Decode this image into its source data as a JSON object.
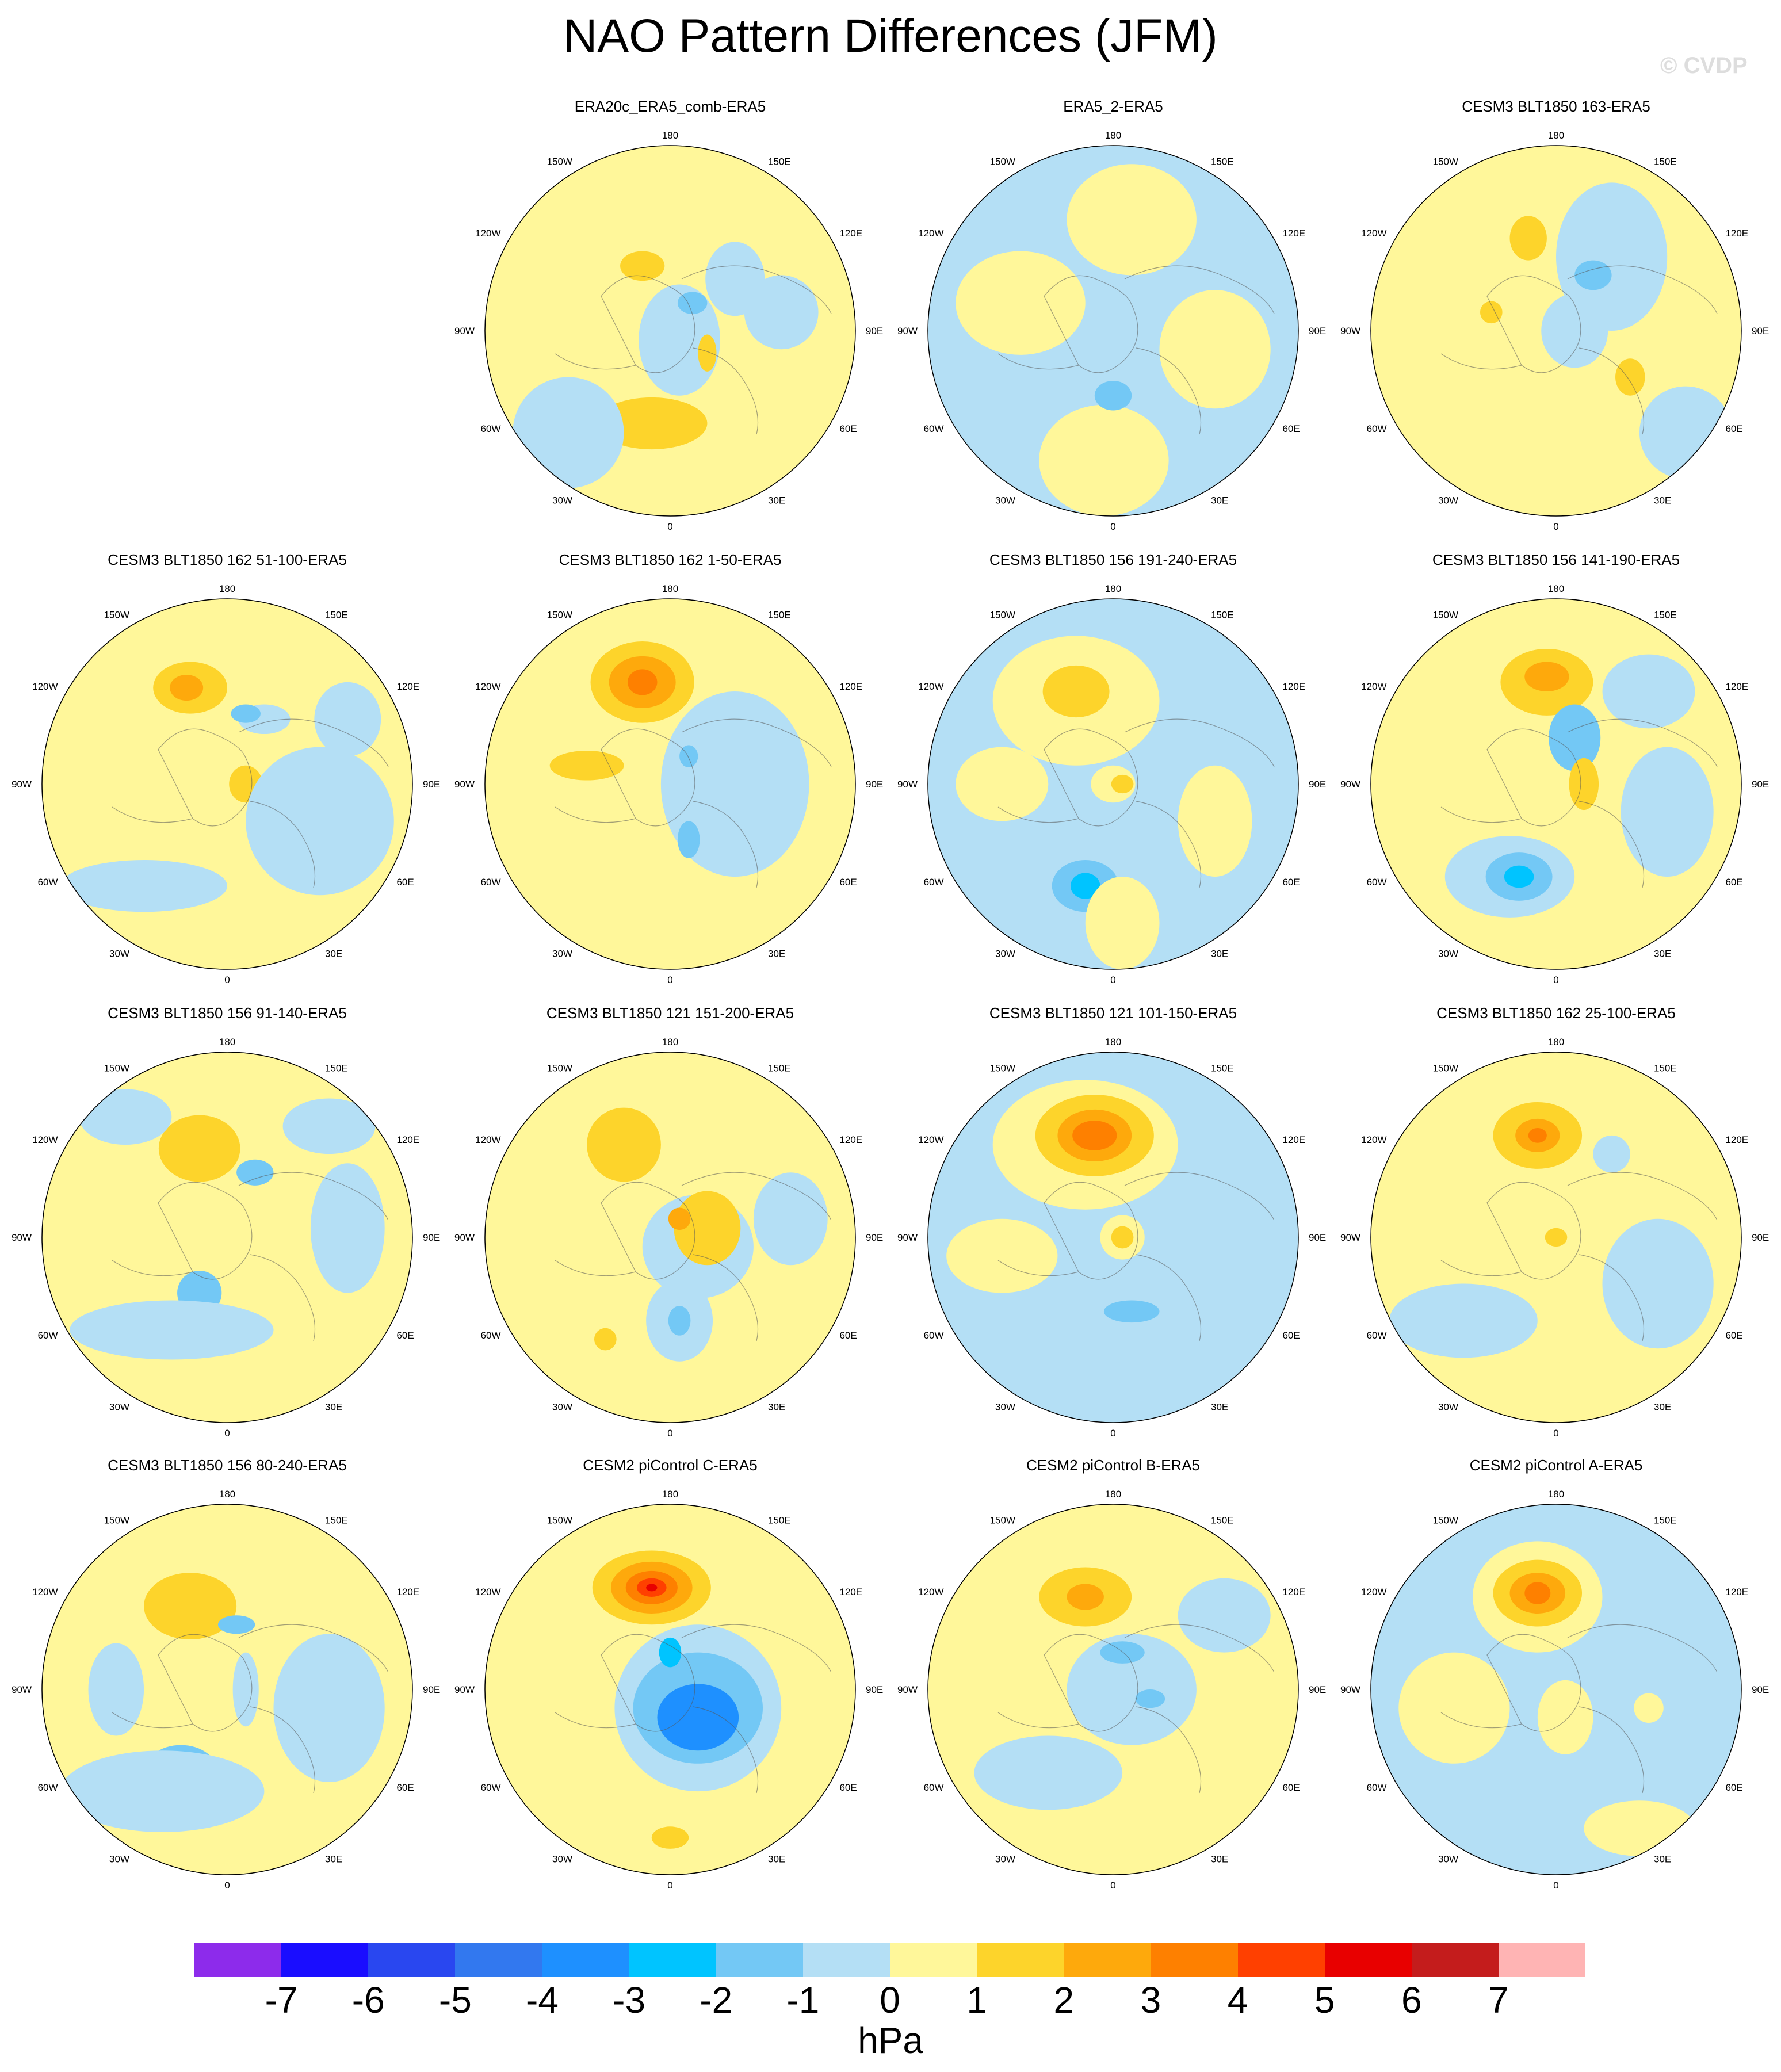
{
  "title": "NAO Pattern Differences (JFM)",
  "watermark": "© CVDP",
  "longitude_labels": [
    "180",
    "150E",
    "120E",
    "90E",
    "60E",
    "30E",
    "0",
    "30W",
    "60W",
    "90W",
    "120W",
    "150W"
  ],
  "colorbar": {
    "colors": [
      "#8d2beb",
      "#1a0dff",
      "#2947f0",
      "#3278ef",
      "#1e90ff",
      "#00c4ff",
      "#73c8f5",
      "#b4dff5",
      "#fff79a",
      "#fdd42b",
      "#fea90c",
      "#fe8000",
      "#ff4000",
      "#e80000",
      "#c41c1c",
      "#ffb4b4"
    ],
    "ticks": [
      "-7",
      "-6",
      "-5",
      "-4",
      "-3",
      "-2",
      "-1",
      "0",
      "1",
      "2",
      "3",
      "4",
      "5",
      "6",
      "7"
    ],
    "units": "hPa"
  },
  "panels": [
    {
      "title": "ERA20c_ERA5_comb-ERA5",
      "base": "#fff79a",
      "blobs": [
        [
          0.35,
          0.28,
          0.16,
          0.2,
          "#b4dff5"
        ],
        [
          -0.15,
          0.35,
          0.12,
          0.08,
          "#fdd42b"
        ],
        [
          0.05,
          -0.05,
          0.22,
          0.3,
          "#b4dff5"
        ],
        [
          0.12,
          0.15,
          0.08,
          0.06,
          "#73c8f5"
        ],
        [
          -0.1,
          -0.5,
          0.3,
          0.14,
          "#fdd42b"
        ],
        [
          0.55,
          -0.25,
          0.18,
          0.14,
          "#fff79a"
        ],
        [
          0.6,
          0.1,
          0.2,
          0.2,
          "#b4dff5"
        ],
        [
          0.2,
          -0.12,
          0.05,
          0.1,
          "#fdd42b"
        ],
        [
          -0.55,
          -0.55,
          0.3,
          0.3,
          "#b4dff5"
        ]
      ]
    },
    {
      "title": "ERA5_2-ERA5",
      "base": "#b4dff5",
      "blobs": [
        [
          0.1,
          0.6,
          0.35,
          0.3,
          "#fff79a"
        ],
        [
          -0.5,
          0.15,
          0.35,
          0.28,
          "#fff79a"
        ],
        [
          0.55,
          -0.1,
          0.3,
          0.32,
          "#fff79a"
        ],
        [
          -0.05,
          -0.7,
          0.35,
          0.3,
          "#fff79a"
        ],
        [
          0.0,
          -0.35,
          0.1,
          0.08,
          "#73c8f5"
        ],
        [
          -0.3,
          0.05,
          0.08,
          0.06,
          "#fff79a"
        ]
      ]
    },
    {
      "title": "CESM3 BLT1850 163-ERA5",
      "base": "#fff79a",
      "blobs": [
        [
          0.3,
          0.4,
          0.3,
          0.4,
          "#b4dff5"
        ],
        [
          -0.15,
          0.5,
          0.1,
          0.12,
          "#fdd42b"
        ],
        [
          0.2,
          0.3,
          0.1,
          0.08,
          "#73c8f5"
        ],
        [
          0.4,
          -0.25,
          0.08,
          0.1,
          "#fdd42b"
        ],
        [
          0.1,
          0.0,
          0.18,
          0.2,
          "#b4dff5"
        ],
        [
          -0.35,
          0.1,
          0.06,
          0.06,
          "#fdd42b"
        ],
        [
          0.7,
          -0.55,
          0.25,
          0.25,
          "#b4dff5"
        ]
      ]
    },
    {
      "title": "CESM3 BLT1850 162 51-100-ERA5",
      "base": "#fff79a",
      "blobs": [
        [
          -0.2,
          0.52,
          0.2,
          0.14,
          "#fdd42b"
        ],
        [
          -0.22,
          0.52,
          0.09,
          0.07,
          "#fea90c"
        ],
        [
          0.2,
          0.35,
          0.14,
          0.08,
          "#b4dff5"
        ],
        [
          0.1,
          0.38,
          0.08,
          0.05,
          "#73c8f5"
        ],
        [
          0.1,
          0.0,
          0.09,
          0.1,
          "#fdd42b"
        ],
        [
          0.5,
          -0.2,
          0.4,
          0.4,
          "#b4dff5"
        ],
        [
          -0.45,
          -0.55,
          0.45,
          0.14,
          "#b4dff5"
        ],
        [
          0.65,
          0.35,
          0.18,
          0.2,
          "#b4dff5"
        ]
      ]
    },
    {
      "title": "CESM3 BLT1850 162 1-50-ERA5",
      "base": "#fff79a",
      "blobs": [
        [
          -0.15,
          0.55,
          0.28,
          0.22,
          "#fdd42b"
        ],
        [
          -0.15,
          0.55,
          0.18,
          0.14,
          "#fea90c"
        ],
        [
          -0.15,
          0.55,
          0.08,
          0.07,
          "#fe8000"
        ],
        [
          -0.45,
          0.1,
          0.2,
          0.08,
          "#fdd42b"
        ],
        [
          0.35,
          0.0,
          0.4,
          0.5,
          "#b4dff5"
        ],
        [
          0.1,
          -0.3,
          0.06,
          0.1,
          "#73c8f5"
        ],
        [
          0.1,
          0.15,
          0.05,
          0.06,
          "#73c8f5"
        ]
      ]
    },
    {
      "title": "CESM3 BLT1850 156 191-240-ERA5",
      "base": "#b4dff5",
      "blobs": [
        [
          -0.2,
          0.45,
          0.45,
          0.35,
          "#fff79a"
        ],
        [
          -0.2,
          0.5,
          0.18,
          0.14,
          "#fdd42b"
        ],
        [
          0.0,
          0.0,
          0.12,
          0.1,
          "#fff79a"
        ],
        [
          0.05,
          0.0,
          0.06,
          0.05,
          "#fdd42b"
        ],
        [
          -0.15,
          -0.55,
          0.18,
          0.14,
          "#73c8f5"
        ],
        [
          -0.15,
          -0.55,
          0.08,
          0.07,
          "#00c4ff"
        ],
        [
          0.05,
          -0.75,
          0.2,
          0.25,
          "#fff79a"
        ],
        [
          -0.6,
          0.0,
          0.25,
          0.2,
          "#fff79a"
        ],
        [
          0.55,
          -0.2,
          0.2,
          0.3,
          "#fff79a"
        ]
      ]
    },
    {
      "title": "CESM3 BLT1850 156 141-190-ERA5",
      "base": "#fff79a",
      "blobs": [
        [
          -0.05,
          0.55,
          0.25,
          0.18,
          "#fdd42b"
        ],
        [
          -0.05,
          0.58,
          0.12,
          0.08,
          "#fea90c"
        ],
        [
          0.1,
          0.25,
          0.14,
          0.18,
          "#73c8f5"
        ],
        [
          0.15,
          0.0,
          0.08,
          0.14,
          "#fdd42b"
        ],
        [
          -0.25,
          -0.5,
          0.35,
          0.22,
          "#b4dff5"
        ],
        [
          -0.2,
          -0.5,
          0.18,
          0.13,
          "#73c8f5"
        ],
        [
          -0.2,
          -0.5,
          0.08,
          0.06,
          "#00c4ff"
        ],
        [
          0.6,
          -0.15,
          0.25,
          0.35,
          "#b4dff5"
        ],
        [
          0.5,
          0.5,
          0.25,
          0.2,
          "#b4dff5"
        ]
      ]
    },
    {
      "title": "CESM3 BLT1850 156 91-140-ERA5",
      "base": "#fff79a",
      "blobs": [
        [
          -0.15,
          0.48,
          0.22,
          0.18,
          "#fdd42b"
        ],
        [
          0.15,
          0.35,
          0.1,
          0.07,
          "#73c8f5"
        ],
        [
          -0.15,
          -0.3,
          0.12,
          0.12,
          "#73c8f5"
        ],
        [
          -0.3,
          -0.5,
          0.55,
          0.16,
          "#b4dff5"
        ],
        [
          0.65,
          0.05,
          0.2,
          0.35,
          "#b4dff5"
        ],
        [
          0.55,
          0.6,
          0.25,
          0.15,
          "#b4dff5"
        ],
        [
          -0.55,
          0.65,
          0.25,
          0.15,
          "#b4dff5"
        ]
      ]
    },
    {
      "title": "CESM3 BLT1850 121 151-200-ERA5",
      "base": "#fff79a",
      "blobs": [
        [
          -0.25,
          0.5,
          0.2,
          0.2,
          "#fdd42b"
        ],
        [
          0.15,
          -0.05,
          0.3,
          0.28,
          "#b4dff5"
        ],
        [
          0.2,
          0.05,
          0.18,
          0.2,
          "#fdd42b"
        ],
        [
          0.05,
          0.1,
          0.06,
          0.06,
          "#fea90c"
        ],
        [
          0.05,
          -0.45,
          0.18,
          0.22,
          "#b4dff5"
        ],
        [
          0.05,
          -0.45,
          0.06,
          0.08,
          "#73c8f5"
        ],
        [
          -0.35,
          -0.55,
          0.06,
          0.06,
          "#fdd42b"
        ],
        [
          0.65,
          0.1,
          0.2,
          0.25,
          "#b4dff5"
        ]
      ]
    },
    {
      "title": "CESM3 BLT1850 121 101-150-ERA5",
      "base": "#b4dff5",
      "blobs": [
        [
          -0.15,
          0.5,
          0.5,
          0.35,
          "#fff79a"
        ],
        [
          -0.1,
          0.55,
          0.32,
          0.22,
          "#fdd42b"
        ],
        [
          -0.1,
          0.55,
          0.2,
          0.14,
          "#fea90c"
        ],
        [
          -0.1,
          0.55,
          0.12,
          0.08,
          "#fe8000"
        ],
        [
          0.05,
          0.0,
          0.12,
          0.12,
          "#fff79a"
        ],
        [
          0.05,
          0.0,
          0.06,
          0.06,
          "#fdd42b"
        ],
        [
          -0.6,
          -0.1,
          0.3,
          0.2,
          "#fff79a"
        ],
        [
          0.1,
          -0.4,
          0.15,
          0.06,
          "#73c8f5"
        ]
      ]
    },
    {
      "title": "CESM3 BLT1850 162 25-100-ERA5",
      "base": "#fff79a",
      "blobs": [
        [
          -0.1,
          0.55,
          0.24,
          0.18,
          "#fdd42b"
        ],
        [
          -0.1,
          0.55,
          0.12,
          0.09,
          "#fea90c"
        ],
        [
          -0.1,
          0.55,
          0.05,
          0.04,
          "#fe8000"
        ],
        [
          0.0,
          0.0,
          0.06,
          0.05,
          "#fdd42b"
        ],
        [
          0.55,
          -0.25,
          0.3,
          0.35,
          "#b4dff5"
        ],
        [
          -0.5,
          -0.45,
          0.4,
          0.2,
          "#b4dff5"
        ],
        [
          0.3,
          0.45,
          0.1,
          0.1,
          "#b4dff5"
        ]
      ]
    },
    {
      "title": "CESM3 BLT1850 156 80-240-ERA5",
      "base": "#fff79a",
      "blobs": [
        [
          -0.2,
          0.45,
          0.25,
          0.18,
          "#fdd42b"
        ],
        [
          0.05,
          0.35,
          0.1,
          0.05,
          "#73c8f5"
        ],
        [
          -0.25,
          -0.45,
          0.2,
          0.15,
          "#73c8f5"
        ],
        [
          -0.35,
          -0.55,
          0.55,
          0.22,
          "#b4dff5"
        ],
        [
          0.55,
          -0.1,
          0.3,
          0.4,
          "#b4dff5"
        ],
        [
          0.1,
          0.0,
          0.07,
          0.2,
          "#b4dff5"
        ],
        [
          -0.6,
          0.0,
          0.15,
          0.25,
          "#b4dff5"
        ]
      ]
    },
    {
      "title": "CESM2 piControl C-ERA5",
      "base": "#fff79a",
      "blobs": [
        [
          0.15,
          -0.1,
          0.45,
          0.45,
          "#b4dff5"
        ],
        [
          0.15,
          -0.1,
          0.35,
          0.3,
          "#73c8f5"
        ],
        [
          0.15,
          -0.15,
          0.22,
          0.18,
          "#1e90ff"
        ],
        [
          0.0,
          0.2,
          0.06,
          0.08,
          "#00c4ff"
        ],
        [
          -0.1,
          0.55,
          0.32,
          0.2,
          "#fdd42b"
        ],
        [
          -0.1,
          0.55,
          0.22,
          0.14,
          "#fea90c"
        ],
        [
          -0.1,
          0.55,
          0.14,
          0.09,
          "#fe8000"
        ],
        [
          -0.1,
          0.55,
          0.08,
          0.05,
          "#ff4000"
        ],
        [
          -0.1,
          0.55,
          0.03,
          0.02,
          "#e80000"
        ],
        [
          0.0,
          -0.8,
          0.1,
          0.06,
          "#fdd42b"
        ]
      ]
    },
    {
      "title": "CESM2 piControl B-ERA5",
      "base": "#fff79a",
      "blobs": [
        [
          -0.15,
          0.5,
          0.25,
          0.16,
          "#fdd42b"
        ],
        [
          -0.15,
          0.5,
          0.1,
          0.07,
          "#fea90c"
        ],
        [
          0.1,
          0.0,
          0.35,
          0.3,
          "#b4dff5"
        ],
        [
          0.05,
          0.2,
          0.12,
          0.06,
          "#73c8f5"
        ],
        [
          0.2,
          -0.05,
          0.08,
          0.05,
          "#73c8f5"
        ],
        [
          -0.3,
          -0.5,
          0.1,
          0.08,
          "#73c8f5"
        ],
        [
          -0.35,
          -0.45,
          0.4,
          0.2,
          "#b4dff5"
        ],
        [
          0.6,
          0.4,
          0.25,
          0.2,
          "#b4dff5"
        ]
      ]
    },
    {
      "title": "CESM2 piControl A-ERA5",
      "base": "#b4dff5",
      "blobs": [
        [
          -0.1,
          0.5,
          0.35,
          0.3,
          "#fff79a"
        ],
        [
          -0.1,
          0.52,
          0.24,
          0.18,
          "#fdd42b"
        ],
        [
          -0.1,
          0.52,
          0.15,
          0.11,
          "#fea90c"
        ],
        [
          -0.1,
          0.52,
          0.07,
          0.06,
          "#fe8000"
        ],
        [
          -0.55,
          -0.1,
          0.3,
          0.3,
          "#fff79a"
        ],
        [
          0.05,
          -0.15,
          0.15,
          0.2,
          "#fff79a"
        ],
        [
          0.45,
          -0.75,
          0.3,
          0.15,
          "#fff79a"
        ],
        [
          0.5,
          -0.1,
          0.08,
          0.08,
          "#fff79a"
        ]
      ]
    }
  ]
}
